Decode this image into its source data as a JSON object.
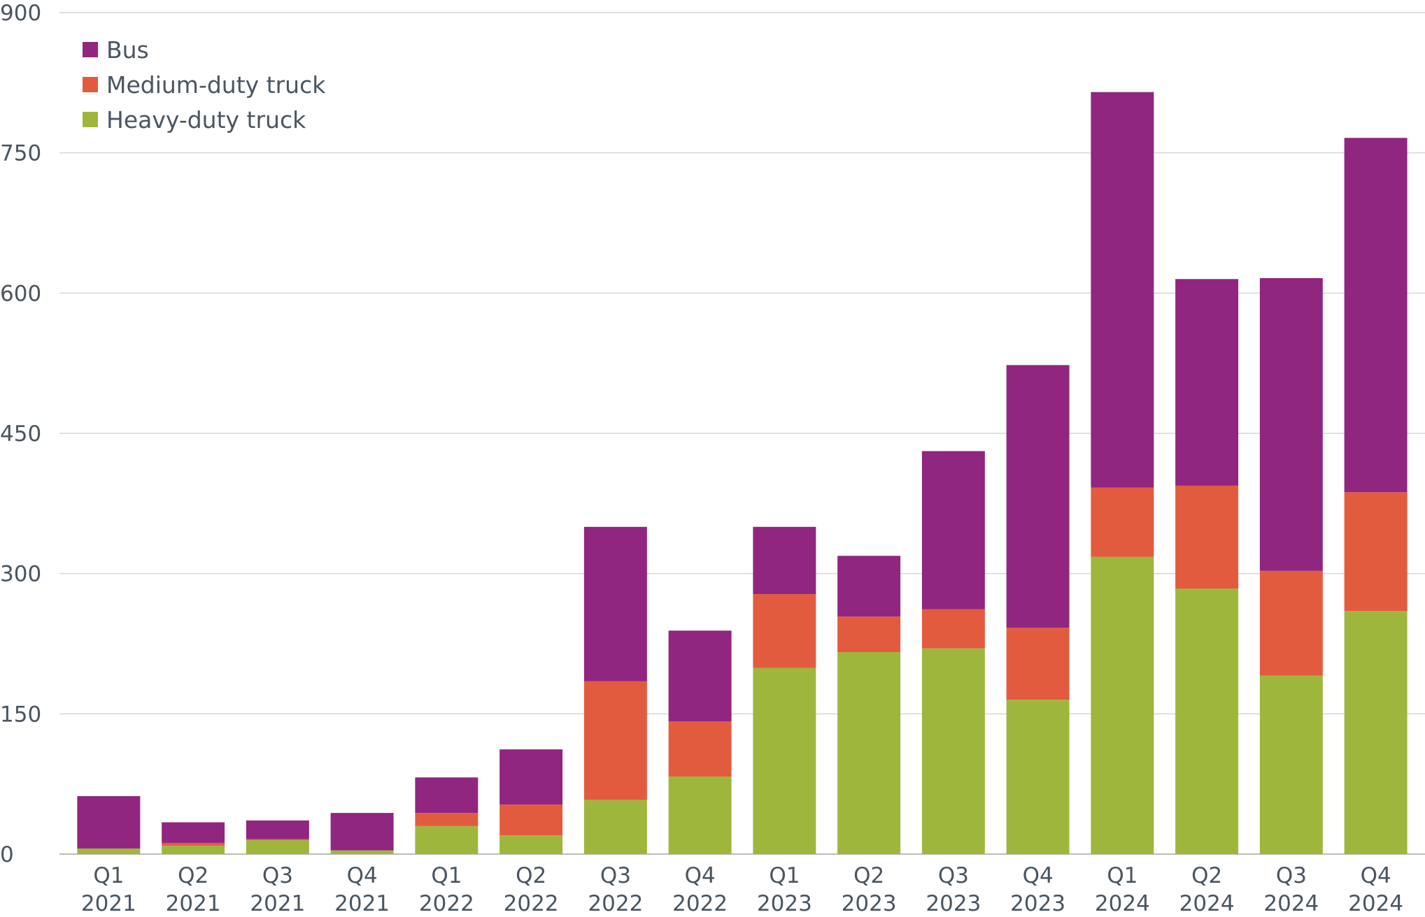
{
  "chart_data": {
    "type": "bar",
    "stacked": true,
    "title": "",
    "xlabel": "",
    "ylabel": "",
    "ylim": [
      0,
      900
    ],
    "yticks": [
      "0",
      "150",
      "300",
      "450",
      "600",
      "750",
      "900"
    ],
    "grid": true,
    "legend_position": "top-left",
    "categories": [
      [
        "Q1",
        "2021"
      ],
      [
        "Q2",
        "2021"
      ],
      [
        "Q3",
        "2021"
      ],
      [
        "Q4",
        "2021"
      ],
      [
        "Q1",
        "2022"
      ],
      [
        "Q2",
        "2022"
      ],
      [
        "Q3",
        "2022"
      ],
      [
        "Q4",
        "2022"
      ],
      [
        "Q1",
        "2023"
      ],
      [
        "Q2",
        "2023"
      ],
      [
        "Q3",
        "2023"
      ],
      [
        "Q4",
        "2023"
      ],
      [
        "Q1",
        "2024"
      ],
      [
        "Q2",
        "2024"
      ],
      [
        "Q3",
        "2024"
      ],
      [
        "Q4",
        "2024"
      ]
    ],
    "series": [
      {
        "name": "Heavy-duty truck",
        "color": "#9fb63d",
        "values": [
          6,
          9,
          15,
          4,
          30,
          20,
          58,
          83,
          199,
          216,
          220,
          165,
          318,
          284,
          191,
          260
        ]
      },
      {
        "name": "Medium-duty truck",
        "color": "#e35b3f",
        "values": [
          0,
          3,
          1,
          0,
          14,
          33,
          127,
          59,
          79,
          38,
          42,
          77,
          74,
          110,
          112,
          127
        ]
      },
      {
        "name": "Bus",
        "color": "#90267f",
        "values": [
          56,
          22,
          20,
          40,
          38,
          59,
          165,
          97,
          72,
          65,
          169,
          281,
          423,
          221,
          313,
          379
        ]
      }
    ],
    "legend_order": [
      "Bus",
      "Medium-duty truck",
      "Heavy-duty truck"
    ]
  }
}
